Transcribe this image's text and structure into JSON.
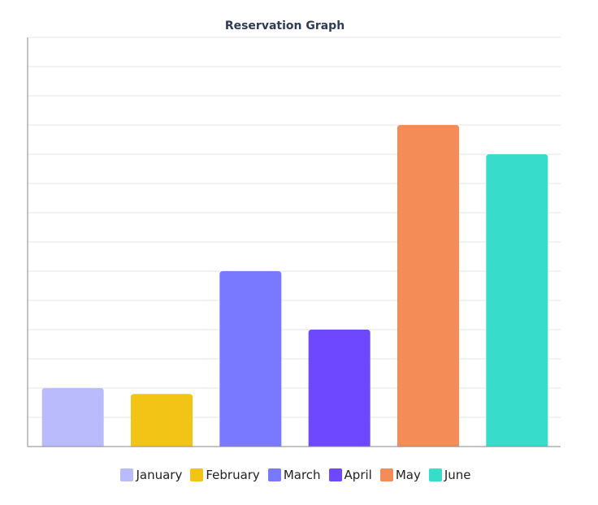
{
  "chart_data": {
    "type": "bar",
    "title": "Reservation Graph",
    "xlabel": "",
    "ylabel": "",
    "categories": [
      "January",
      "February",
      "March",
      "April",
      "May",
      "June"
    ],
    "values": [
      2,
      1.8,
      6,
      4,
      11,
      10
    ],
    "colors": [
      "#babbfc",
      "#f2c416",
      "#7879fe",
      "#6d48fe",
      "#f38c56",
      "#38dccb"
    ],
    "ylim": [
      0,
      14
    ],
    "grid": true,
    "legend_position": "bottom"
  }
}
